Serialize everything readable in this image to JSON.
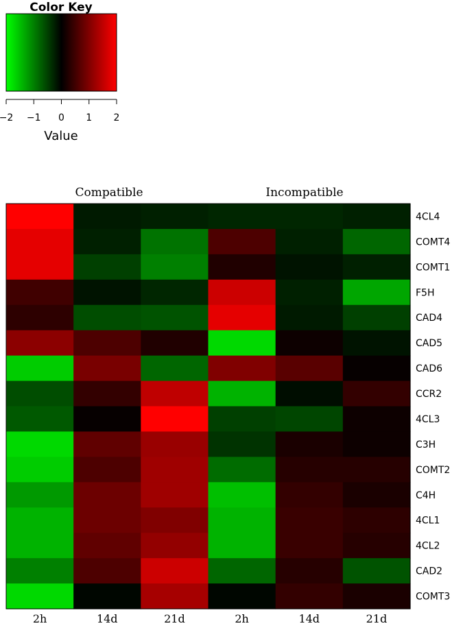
{
  "chart_data": {
    "type": "heatmap",
    "color_key": {
      "title": "Color Key",
      "xlabel": "Value",
      "ticks": [
        "−2",
        "−1",
        "0",
        "1",
        "2"
      ],
      "range": [
        -2,
        2
      ],
      "low_color": "#00ff00",
      "mid_color": "#000000",
      "high_color": "#ff0000"
    },
    "groups": [
      "Compatible",
      "Incompatible"
    ],
    "columns": [
      "2h",
      "14d",
      "21d",
      "2h",
      "14d",
      "21d"
    ],
    "rows": [
      "4CL4",
      "COMT4",
      "COMT1",
      "F5H",
      "CAD4",
      "CAD5",
      "CAD6",
      "CCR2",
      "4CL3",
      "C3H",
      "COMT2",
      "C4H",
      "4CL1",
      "4CL2",
      "CAD2",
      "COMT3"
    ],
    "values": [
      [
        2.0,
        -0.2,
        -0.25,
        -0.3,
        -0.3,
        -0.25
      ],
      [
        1.8,
        -0.25,
        -0.9,
        0.6,
        -0.25,
        -0.8
      ],
      [
        1.8,
        -0.5,
        -1.0,
        0.25,
        -0.15,
        -0.25
      ],
      [
        0.5,
        -0.15,
        -0.3,
        1.6,
        -0.25,
        -1.3
      ],
      [
        0.35,
        -0.6,
        -0.65,
        1.8,
        -0.2,
        -0.5
      ],
      [
        1.1,
        0.6,
        0.25,
        -1.7,
        0.1,
        -0.15
      ],
      [
        -1.6,
        0.95,
        -0.8,
        1.0,
        0.7,
        0.05
      ],
      [
        -0.6,
        0.4,
        1.5,
        -1.4,
        -0.1,
        0.4
      ],
      [
        -0.7,
        0.05,
        2.0,
        -0.5,
        -0.55,
        0.1
      ],
      [
        -1.7,
        0.75,
        1.2,
        -0.4,
        0.2,
        0.1
      ],
      [
        -1.6,
        0.6,
        1.25,
        -0.85,
        0.3,
        0.3
      ],
      [
        -1.2,
        0.85,
        1.25,
        -1.5,
        0.4,
        0.2
      ],
      [
        -1.4,
        0.85,
        1.0,
        -1.4,
        0.45,
        0.35
      ],
      [
        -1.4,
        0.75,
        1.15,
        -1.4,
        0.45,
        0.3
      ],
      [
        -1.0,
        0.6,
        1.6,
        -0.8,
        0.3,
        -0.65
      ],
      [
        -1.7,
        -0.05,
        1.3,
        -0.05,
        0.4,
        0.2
      ]
    ]
  }
}
